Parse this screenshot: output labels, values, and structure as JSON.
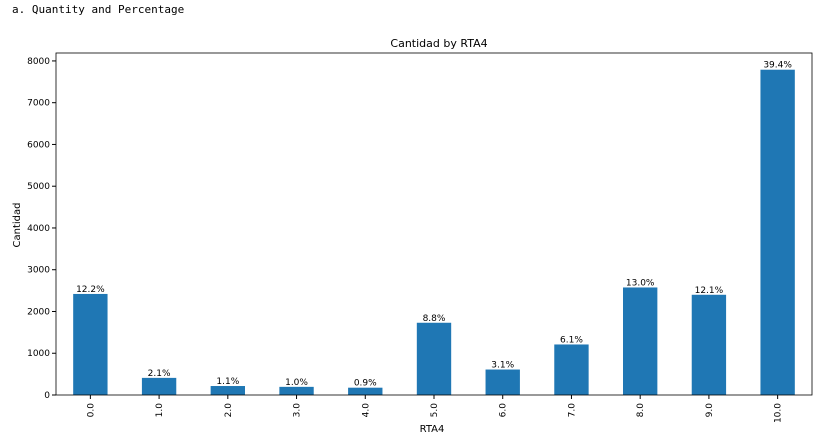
{
  "cell_heading": "a. Quantity and Percentage",
  "chart_data": {
    "type": "bar",
    "title": "Cantidad by RTA4",
    "xlabel": "RTA4",
    "ylabel": "Cantidad",
    "categories": [
      "0.0",
      "1.0",
      "2.0",
      "3.0",
      "4.0",
      "5.0",
      "6.0",
      "7.0",
      "8.0",
      "9.0",
      "10.0"
    ],
    "values": [
      2420,
      410,
      215,
      195,
      175,
      1730,
      610,
      1210,
      2575,
      2400,
      7790
    ],
    "bar_labels": [
      "12.2%",
      "2.1%",
      "1.1%",
      "1.0%",
      "0.9%",
      "8.8%",
      "3.1%",
      "6.1%",
      "13.0%",
      "12.1%",
      "39.4%"
    ],
    "ylim": [
      0,
      8190
    ],
    "yticks": [
      0,
      1000,
      2000,
      3000,
      4000,
      5000,
      6000,
      7000,
      8000
    ],
    "bar_color": "#1f77b4",
    "grid": false,
    "legend": "none"
  }
}
